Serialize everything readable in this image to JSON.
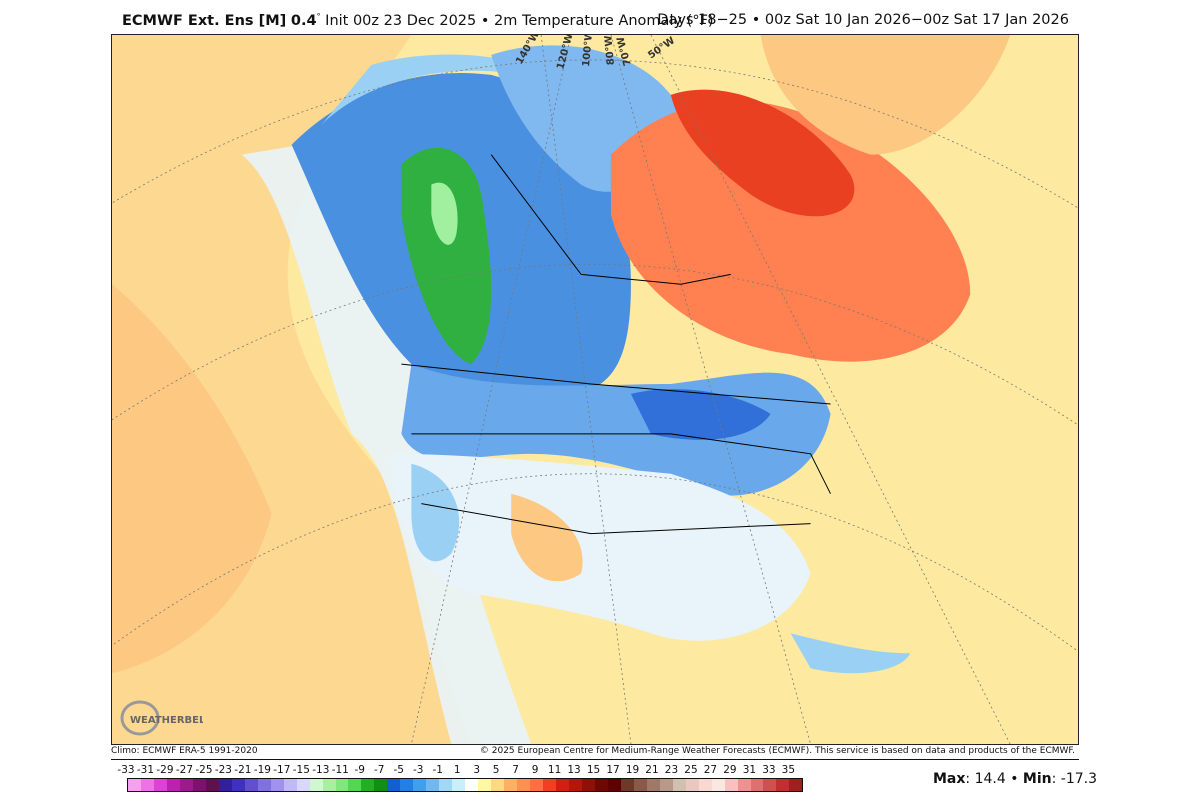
{
  "header": {
    "model": "ECMWF Ext. Ens [M]",
    "resolution": "0.4",
    "degree": "°",
    "init": " Init 00z 23 Dec 2025 • 2m Temperature Anomaly (°F)",
    "valid": "Days 18−25 • 00z Sat 10 Jan 2026−00z Sat 17 Jan 2026"
  },
  "footer": {
    "climo": "Climo: ECMWF ERA-5 1991-2020",
    "copyright": "© 2025 European Centre for Medium-Range Weather Forecasts (ECMWF). This service is based on data and products of the ECMWF.",
    "max_label": "Max",
    "max_value": ": 14.4 • ",
    "min_label": "Min",
    "min_value": ": -17.3"
  },
  "map": {
    "longitude_labels": [
      "140°W",
      "120°W",
      "100°W",
      "80°W",
      "70°W",
      "50°W"
    ],
    "logo_text": "WEATHERBELL"
  },
  "colorbar": {
    "labels": [
      "-33",
      "-31",
      "-29",
      "-27",
      "-25",
      "-23",
      "-21",
      "-19",
      "-17",
      "-15",
      "-13",
      "-11",
      "-9",
      "-7",
      "-5",
      "-3",
      "-1",
      "1",
      "3",
      "5",
      "7",
      "9",
      "11",
      "13",
      "15",
      "17",
      "19",
      "21",
      "23",
      "25",
      "27",
      "29",
      "31",
      "33",
      "35"
    ],
    "colors": [
      "#f7a0f0",
      "#f070e8",
      "#e040d8",
      "#c020b0",
      "#a01890",
      "#801070",
      "#601050",
      "#3020a0",
      "#4030c0",
      "#6050d0",
      "#8070e0",
      "#a090f0",
      "#c0b8f8",
      "#d8d8fc",
      "#d0f8d0",
      "#a8f0a0",
      "#80e878",
      "#50d850",
      "#20b020",
      "#109010",
      "#1060d0",
      "#2080e8",
      "#40a0f0",
      "#70b8f0",
      "#a0d8f8",
      "#c8f0f8",
      "#ffffff",
      "#fff8a0",
      "#ffd880",
      "#ffb060",
      "#ff9050",
      "#ff7040",
      "#f04020",
      "#d02010",
      "#b01808",
      "#901008",
      "#700800",
      "#600000",
      "#703828",
      "#8a5a48",
      "#a07868",
      "#b89888",
      "#d0c0b0",
      "#e8c8c0",
      "#f8d8d0",
      "#f8e8e0",
      "#f8c0c0",
      "#f09090",
      "#e07070",
      "#d05050",
      "#c03030",
      "#a02020"
    ]
  }
}
